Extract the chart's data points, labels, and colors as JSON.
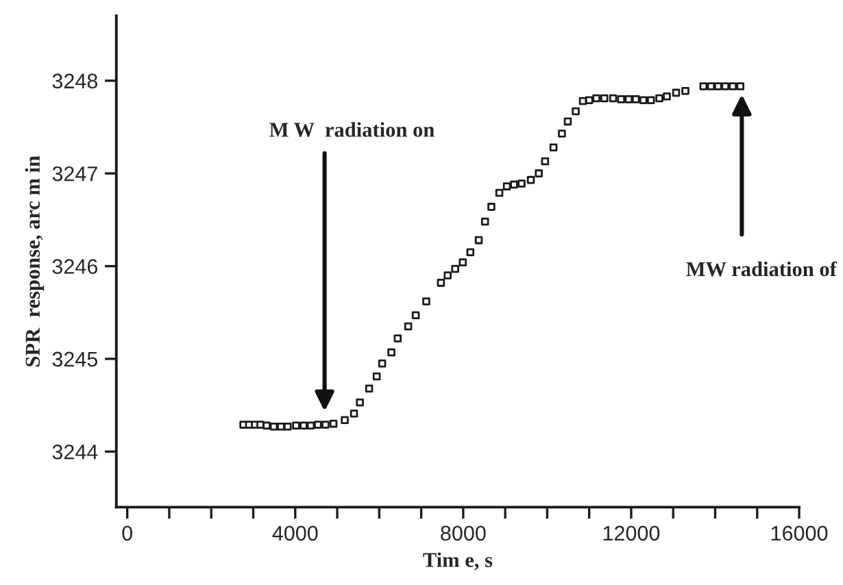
{
  "chart_data": {
    "type": "scatter",
    "xlabel": "Tim e, s",
    "ylabel": "SPR  response, arc m in",
    "x": [
      2765,
      2900,
      3040,
      3170,
      3320,
      3490,
      3660,
      3820,
      4020,
      4200,
      4370,
      4540,
      4720,
      4910,
      5180,
      5400,
      5540,
      5760,
      5940,
      6070,
      6290,
      6440,
      6690,
      6870,
      7120,
      7470,
      7630,
      7810,
      7990,
      8170,
      8370,
      8520,
      8670,
      8860,
      9040,
      9210,
      9390,
      9610,
      9800,
      9950,
      10150,
      10350,
      10490,
      10680,
      10850,
      11000,
      11170,
      11360,
      11570,
      11760,
      11940,
      12110,
      12290,
      12470,
      12670,
      12850,
      13070,
      13290,
      13720,
      13900,
      14070,
      14240,
      14420,
      14600
    ],
    "series": [
      {
        "color": "#1a1a1a",
        "values": [
          3244.29,
          3244.29,
          3244.29,
          3244.29,
          3244.28,
          3244.27,
          3244.27,
          3244.27,
          3244.28,
          3244.28,
          3244.28,
          3244.29,
          3244.29,
          3244.3,
          3244.34,
          3244.41,
          3244.53,
          3244.68,
          3244.81,
          3244.95,
          3245.07,
          3245.22,
          3245.35,
          3245.47,
          3245.62,
          3245.82,
          3245.9,
          3245.97,
          3246.04,
          3246.15,
          3246.28,
          3246.48,
          3246.64,
          3246.79,
          3246.86,
          3246.88,
          3246.89,
          3246.93,
          3247.0,
          3247.13,
          3247.28,
          3247.43,
          3247.56,
          3247.67,
          3247.78,
          3247.79,
          3247.81,
          3247.81,
          3247.81,
          3247.8,
          3247.8,
          3247.8,
          3247.79,
          3247.79,
          3247.81,
          3247.83,
          3247.87,
          3247.89,
          3247.94,
          3247.94,
          3247.94,
          3247.94,
          3247.94,
          3247.94
        ]
      }
    ],
    "marker": "square",
    "xlim": [
      -260,
      16000
    ],
    "xticks": [
      0,
      {
        "value": 1000,
        "label": null
      },
      {
        "value": 2000,
        "label": null
      },
      {
        "value": 3000,
        "label": null
      },
      4000,
      {
        "value": 5000,
        "label": null
      },
      {
        "value": 6000,
        "label": null
      },
      {
        "value": 7000,
        "label": null
      },
      8000,
      {
        "value": 9000,
        "label": null
      },
      {
        "value": 10000,
        "label": null
      },
      {
        "value": 11000,
        "label": null
      },
      12000,
      {
        "value": 13000,
        "label": null
      },
      {
        "value": 14000,
        "label": null
      },
      {
        "value": 15000,
        "label": null
      },
      16000
    ],
    "ylim": [
      3243.4,
      3248.7
    ],
    "yticks": [
      3244,
      3245,
      3246,
      3247,
      3248
    ],
    "grid": false,
    "annotations": [
      "M W  radiation on",
      "MW radiation of"
    ]
  }
}
